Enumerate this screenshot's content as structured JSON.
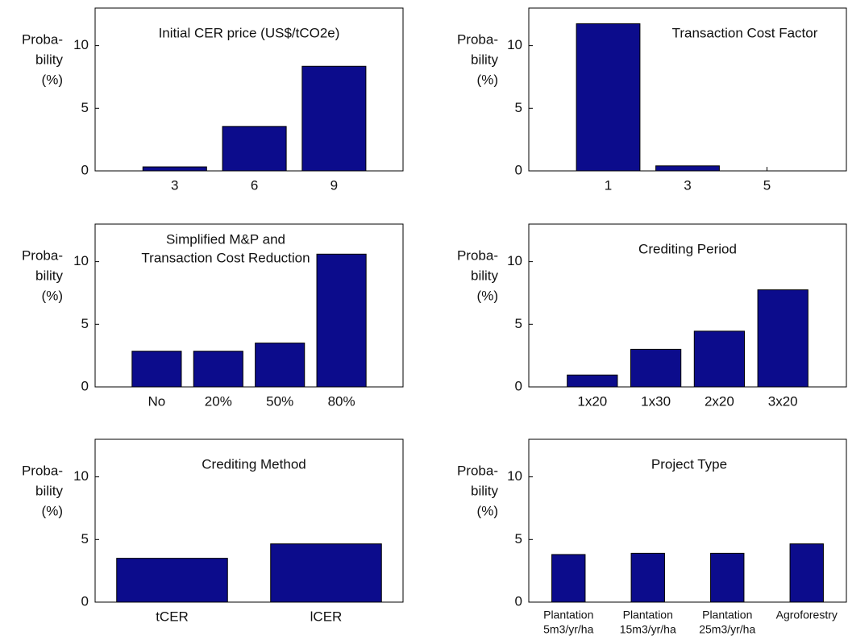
{
  "chart_data": [
    {
      "type": "bar",
      "title": "Initial CER price (US$/tCO2e)",
      "ylabel": [
        "Proba-",
        "bility",
        "(%)"
      ],
      "x": [
        3,
        6,
        9
      ],
      "values": [
        0.32,
        3.55,
        8.35
      ],
      "xlim": [
        0,
        11.6
      ],
      "xticks": [
        3,
        6,
        9
      ],
      "ylim": [
        0,
        13
      ],
      "yticks": [
        0,
        5,
        10
      ],
      "color": "#0c0c8c"
    },
    {
      "type": "bar",
      "title": "Transaction Cost Factor",
      "ylabel": [
        "Proba-",
        "bility",
        "(%)"
      ],
      "x": [
        1,
        3,
        5
      ],
      "values": [
        11.75,
        0.4,
        0
      ],
      "xlim": [
        -1,
        7
      ],
      "xticks": [
        1,
        3,
        5
      ],
      "ylim": [
        0,
        13
      ],
      "yticks": [
        0,
        5,
        10
      ],
      "color": "#0c0c8c"
    },
    {
      "type": "bar",
      "title": [
        "Simplified M&P and",
        "Transaction Cost Reduction"
      ],
      "ylabel": [
        "Proba-",
        "bility",
        "(%)"
      ],
      "categories": [
        [
          "No"
        ],
        [
          "20%"
        ],
        [
          "50%"
        ],
        [
          "80%"
        ]
      ],
      "values": [
        2.85,
        2.85,
        3.5,
        10.6
      ],
      "ylim": [
        0,
        13
      ],
      "yticks": [
        0,
        5,
        10
      ],
      "color": "#0c0c8c"
    },
    {
      "type": "bar",
      "title": "Crediting Period",
      "ylabel": [
        "Proba-",
        "bility",
        "(%)"
      ],
      "categories": [
        [
          "1x20"
        ],
        [
          "1x30"
        ],
        [
          "2x20"
        ],
        [
          "3x20"
        ]
      ],
      "values": [
        0.95,
        3.0,
        4.45,
        7.75
      ],
      "ylim": [
        0,
        13
      ],
      "yticks": [
        0,
        5,
        10
      ],
      "color": "#0c0c8c"
    },
    {
      "type": "bar",
      "title": "Crediting Method",
      "ylabel": [
        "Proba-",
        "bility",
        "(%)"
      ],
      "categories": [
        [
          "tCER"
        ],
        [
          "lCER"
        ]
      ],
      "values": [
        3.5,
        4.65
      ],
      "ylim": [
        0,
        13
      ],
      "yticks": [
        0,
        5,
        10
      ],
      "color": "#0c0c8c"
    },
    {
      "type": "bar",
      "title": "Project Type",
      "ylabel": [
        "Proba-",
        "bility",
        "(%)"
      ],
      "categories": [
        [
          "Plantation",
          "5m3/yr/ha"
        ],
        [
          "Plantation",
          "15m3/yr/ha"
        ],
        [
          "Plantation",
          "25m3/yr/ha"
        ],
        [
          "Agroforestry"
        ]
      ],
      "values": [
        3.8,
        3.9,
        3.9,
        4.65
      ],
      "ylim": [
        0,
        13
      ],
      "yticks": [
        0,
        5,
        10
      ],
      "color": "#0c0c8c"
    }
  ]
}
